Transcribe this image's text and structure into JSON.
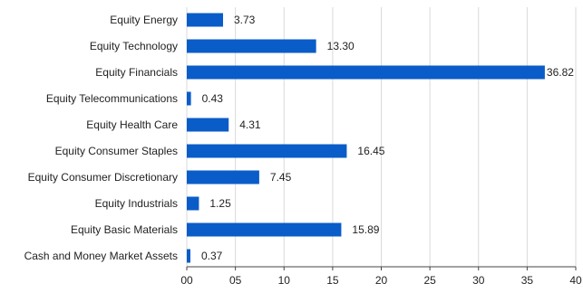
{
  "chart_data": {
    "type": "bar",
    "orientation": "horizontal",
    "categories": [
      "Equity Energy",
      "Equity Technology",
      "Equity Financials",
      "Equity Telecommunications",
      "Equity Health Care",
      "Equity Consumer Staples",
      "Equity Consumer Discretionary",
      "Equity Industrials",
      "Equity Basic Materials",
      "Cash and Money Market Assets"
    ],
    "values": [
      3.73,
      13.3,
      36.82,
      0.43,
      4.31,
      16.45,
      7.45,
      1.25,
      15.89,
      0.37
    ],
    "value_labels": [
      "3.73",
      "13.30",
      "36.82",
      "0.43",
      "4.31",
      "16.45",
      "7.45",
      "1.25",
      "15.89",
      "0.37"
    ],
    "xlim": [
      0,
      40
    ],
    "xticks": [
      0,
      5,
      10,
      15,
      20,
      25,
      30,
      35,
      40
    ],
    "xtick_labels": [
      "00",
      "05",
      "10",
      "15",
      "20",
      "25",
      "30",
      "35",
      "40"
    ],
    "bar_color": "#0a5cc8",
    "grid": true,
    "legend": "none",
    "title": "",
    "xlabel": "",
    "ylabel": ""
  }
}
